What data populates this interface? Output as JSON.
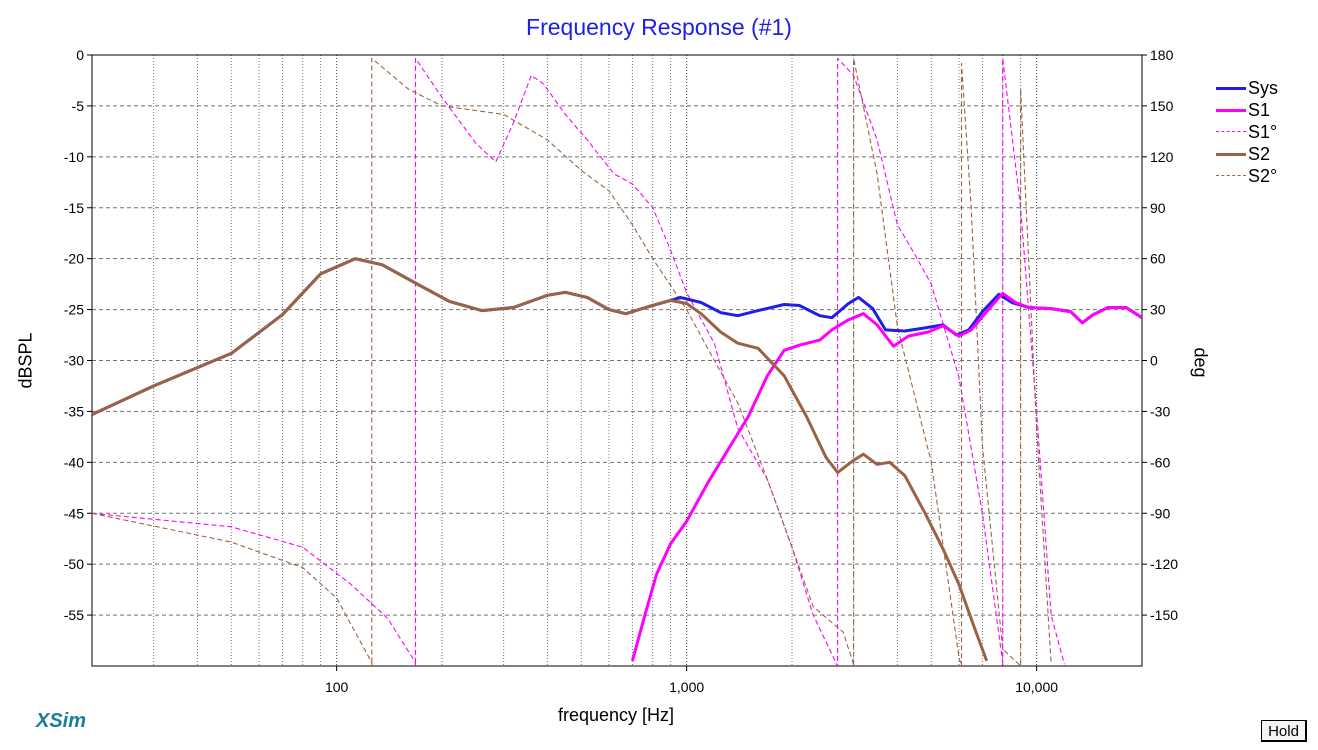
{
  "chart_data": {
    "type": "line",
    "title": "Frequency Response (#1)",
    "xlabel": "frequency [Hz]",
    "ylabel": "dBSPL",
    "ylabel_right": "deg",
    "x_scale": "log",
    "xlim": [
      20,
      20000
    ],
    "ylim": [
      -60,
      0
    ],
    "y2lim": [
      -180,
      180
    ],
    "x_ticks": [
      100,
      1000,
      10000
    ],
    "x_tick_labels": [
      "100",
      "1,000",
      "10,000"
    ],
    "y_ticks": [
      0,
      -5,
      -10,
      -15,
      -20,
      -25,
      -30,
      -35,
      -40,
      -45,
      -50,
      -55
    ],
    "y_tick_labels": [
      "0",
      "-5",
      "-10",
      "-15",
      "-20",
      "-25",
      "-30",
      "-35",
      "-40",
      "-45",
      "-50",
      "-55"
    ],
    "y2_ticks": [
      180,
      150,
      120,
      90,
      60,
      30,
      0,
      -30,
      -60,
      -90,
      -120,
      -150
    ],
    "y2_tick_labels": [
      "180",
      "150",
      "120",
      "90",
      "60",
      "30",
      "0",
      "-30",
      "-60",
      "-90",
      "-120",
      "-150"
    ],
    "grid": true,
    "legend_position": "right",
    "series": [
      {
        "name": "Sys",
        "color": "#1f1fe6",
        "axis": "left",
        "style": "solid-thick",
        "points": [
          [
            20,
            -35.3
          ],
          [
            30,
            -32.5
          ],
          [
            50,
            -29.3
          ],
          [
            70,
            -25.5
          ],
          [
            90,
            -21.5
          ],
          [
            113,
            -20.0
          ],
          [
            135,
            -20.6
          ],
          [
            170,
            -22.5
          ],
          [
            210,
            -24.2
          ],
          [
            260,
            -25.1
          ],
          [
            320,
            -24.8
          ],
          [
            400,
            -23.6
          ],
          [
            450,
            -23.3
          ],
          [
            520,
            -23.8
          ],
          [
            600,
            -25.0
          ],
          [
            670,
            -25.4
          ],
          [
            780,
            -24.7
          ],
          [
            900,
            -24.1
          ],
          [
            960,
            -23.8
          ],
          [
            1100,
            -24.3
          ],
          [
            1250,
            -25.3
          ],
          [
            1400,
            -25.6
          ],
          [
            1600,
            -25.1
          ],
          [
            1900,
            -24.5
          ],
          [
            2100,
            -24.6
          ],
          [
            2400,
            -25.6
          ],
          [
            2600,
            -25.8
          ],
          [
            2900,
            -24.4
          ],
          [
            3100,
            -23.8
          ],
          [
            3400,
            -24.9
          ],
          [
            3700,
            -27.0
          ],
          [
            4200,
            -27.1
          ],
          [
            4800,
            -26.8
          ],
          [
            5400,
            -26.5
          ],
          [
            5900,
            -27.5
          ],
          [
            6400,
            -27.0
          ],
          [
            7000,
            -25.2
          ],
          [
            7800,
            -23.5
          ],
          [
            8500,
            -24.3
          ],
          [
            9500,
            -24.8
          ],
          [
            11000,
            -24.9
          ],
          [
            12500,
            -25.2
          ],
          [
            13500,
            -26.3
          ],
          [
            14500,
            -25.5
          ],
          [
            16000,
            -24.8
          ],
          [
            18000,
            -24.8
          ],
          [
            20000,
            -25.8
          ]
        ]
      },
      {
        "name": "S1",
        "color": "#ff00ff",
        "axis": "left",
        "style": "solid-thick",
        "points": [
          [
            700,
            -59.5
          ],
          [
            760,
            -55.0
          ],
          [
            820,
            -51.0
          ],
          [
            900,
            -48.0
          ],
          [
            1000,
            -45.8
          ],
          [
            1150,
            -42.0
          ],
          [
            1300,
            -39.0
          ],
          [
            1500,
            -35.5
          ],
          [
            1700,
            -31.5
          ],
          [
            1900,
            -29.0
          ],
          [
            2100,
            -28.5
          ],
          [
            2400,
            -28.0
          ],
          [
            2600,
            -27.0
          ],
          [
            2900,
            -26.0
          ],
          [
            3200,
            -25.4
          ],
          [
            3500,
            -26.5
          ],
          [
            3900,
            -28.6
          ],
          [
            4300,
            -27.6
          ],
          [
            4900,
            -27.2
          ],
          [
            5400,
            -26.6
          ],
          [
            6000,
            -27.6
          ],
          [
            6500,
            -27.0
          ],
          [
            7200,
            -25.2
          ],
          [
            8000,
            -23.4
          ],
          [
            8700,
            -24.3
          ],
          [
            9500,
            -24.8
          ],
          [
            11000,
            -24.9
          ],
          [
            12500,
            -25.2
          ],
          [
            13500,
            -26.3
          ],
          [
            14500,
            -25.5
          ],
          [
            16000,
            -24.8
          ],
          [
            18000,
            -24.8
          ],
          [
            20000,
            -25.8
          ]
        ]
      },
      {
        "name": "S1°",
        "color": "#ff00ff",
        "axis": "right",
        "style": "dashed-thin",
        "points": [
          [
            20,
            -90
          ],
          [
            50,
            -98
          ],
          [
            80,
            -110
          ],
          [
            110,
            -132
          ],
          [
            140,
            -152
          ],
          [
            168,
            -178
          ],
          [
            168,
            178
          ],
          [
            200,
            155
          ],
          [
            250,
            128
          ],
          [
            285,
            117
          ],
          [
            320,
            140
          ],
          [
            360,
            168
          ],
          [
            390,
            163
          ],
          [
            450,
            145
          ],
          [
            520,
            130
          ],
          [
            620,
            110
          ],
          [
            700,
            104
          ],
          [
            800,
            90
          ],
          [
            900,
            65
          ],
          [
            1000,
            40
          ],
          [
            1200,
            10
          ],
          [
            1400,
            -40
          ],
          [
            1700,
            -70
          ],
          [
            2000,
            -110
          ],
          [
            2300,
            -150
          ],
          [
            2700,
            -180
          ],
          [
            2700,
            178
          ],
          [
            3000,
            168
          ],
          [
            3500,
            130
          ],
          [
            4000,
            80
          ],
          [
            4500,
            62
          ],
          [
            5000,
            45
          ],
          [
            6000,
            -10
          ],
          [
            7000,
            -90
          ],
          [
            8000,
            -178
          ],
          [
            8000,
            178
          ],
          [
            9000,
            90
          ],
          [
            10000,
            -30
          ],
          [
            11000,
            -150
          ],
          [
            12000,
            -179
          ]
        ]
      },
      {
        "name": "S2",
        "color": "#9b6345",
        "axis": "left",
        "style": "solid-thick",
        "points": [
          [
            20,
            -35.3
          ],
          [
            30,
            -32.5
          ],
          [
            50,
            -29.3
          ],
          [
            70,
            -25.5
          ],
          [
            90,
            -21.5
          ],
          [
            113,
            -20.0
          ],
          [
            135,
            -20.6
          ],
          [
            170,
            -22.5
          ],
          [
            210,
            -24.2
          ],
          [
            260,
            -25.1
          ],
          [
            320,
            -24.8
          ],
          [
            400,
            -23.6
          ],
          [
            450,
            -23.3
          ],
          [
            520,
            -23.8
          ],
          [
            600,
            -25.0
          ],
          [
            670,
            -25.4
          ],
          [
            780,
            -24.7
          ],
          [
            900,
            -24.1
          ],
          [
            1000,
            -24.4
          ],
          [
            1100,
            -25.4
          ],
          [
            1250,
            -27.2
          ],
          [
            1400,
            -28.3
          ],
          [
            1600,
            -28.8
          ],
          [
            1900,
            -31.5
          ],
          [
            2200,
            -35.5
          ],
          [
            2500,
            -39.5
          ],
          [
            2700,
            -41.0
          ],
          [
            3000,
            -39.8
          ],
          [
            3200,
            -39.2
          ],
          [
            3500,
            -40.2
          ],
          [
            3800,
            -40.0
          ],
          [
            4200,
            -41.3
          ],
          [
            4800,
            -45.0
          ],
          [
            5400,
            -48.5
          ],
          [
            6000,
            -52.0
          ],
          [
            6600,
            -56.0
          ],
          [
            7200,
            -59.5
          ]
        ]
      },
      {
        "name": "S2°",
        "color": "#9b6345",
        "axis": "right",
        "style": "dashed-thin",
        "points": [
          [
            20,
            -90
          ],
          [
            50,
            -107
          ],
          [
            80,
            -122
          ],
          [
            100,
            -140
          ],
          [
            126,
            -178
          ],
          [
            126,
            178
          ],
          [
            160,
            160
          ],
          [
            200,
            150
          ],
          [
            300,
            145
          ],
          [
            400,
            130
          ],
          [
            500,
            112
          ],
          [
            600,
            100
          ],
          [
            700,
            80
          ],
          [
            800,
            60
          ],
          [
            1000,
            30
          ],
          [
            1200,
            0
          ],
          [
            1400,
            -25
          ],
          [
            1700,
            -70
          ],
          [
            2000,
            -110
          ],
          [
            2300,
            -145
          ],
          [
            2800,
            -160
          ],
          [
            3000,
            -179
          ],
          [
            3000,
            178
          ],
          [
            3500,
            110
          ],
          [
            4000,
            20
          ],
          [
            5000,
            -60
          ],
          [
            6000,
            -175
          ],
          [
            6100,
            175
          ],
          [
            6500,
            90
          ],
          [
            7000,
            -50
          ],
          [
            8000,
            -170
          ],
          [
            9000,
            160
          ],
          [
            10000,
            -40
          ],
          [
            11000,
            -178
          ]
        ]
      }
    ]
  },
  "brand": "XSim",
  "hold_button": "Hold"
}
